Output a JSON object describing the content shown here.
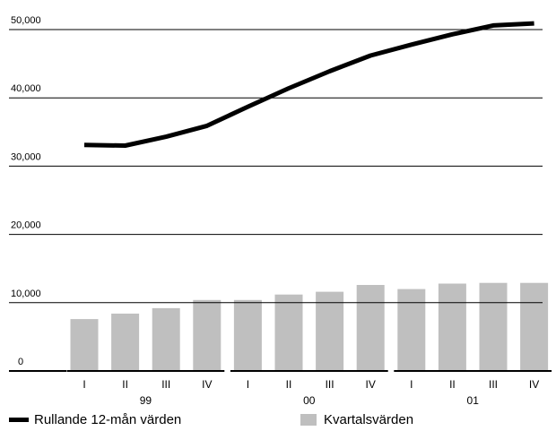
{
  "chart_data": {
    "type": "bar",
    "y_ticks": [
      {
        "value": 0,
        "label": "0"
      },
      {
        "value": 10000,
        "label": "10,000"
      },
      {
        "value": 20000,
        "label": "20,000"
      },
      {
        "value": 30000,
        "label": "30,000"
      },
      {
        "value": 40000,
        "label": "40,000"
      },
      {
        "value": 50000,
        "label": "50,000"
      }
    ],
    "ylim": [
      0,
      50000
    ],
    "grid": true,
    "categories": [
      "I",
      "II",
      "III",
      "IV",
      "I",
      "II",
      "III",
      "IV",
      "I",
      "II",
      "III",
      "IV"
    ],
    "groups": [
      {
        "label": "99",
        "categories": [
          "I",
          "II",
          "III",
          "IV"
        ]
      },
      {
        "label": "00",
        "categories": [
          "I",
          "II",
          "III",
          "IV"
        ]
      },
      {
        "label": "01",
        "categories": [
          "I",
          "II",
          "III",
          "IV"
        ]
      }
    ],
    "series": [
      {
        "name": "Kvartalsvärden",
        "type": "bar",
        "color": "#bfbfbf",
        "values": [
          7600,
          8400,
          9200,
          10400,
          10400,
          11200,
          11600,
          12600,
          12000,
          12800,
          12900,
          12900
        ]
      },
      {
        "name": "Rullande 12-mån värden",
        "type": "line",
        "color": "#000000",
        "values": [
          33100,
          33000,
          34300,
          35900,
          38700,
          41400,
          43900,
          46200,
          47800,
          49300,
          50600,
          50900
        ]
      }
    ],
    "legend_position": "bottom"
  },
  "legend": {
    "line_label": "Rullande 12-mån värden",
    "bar_label": "Kvartalsvärden"
  }
}
